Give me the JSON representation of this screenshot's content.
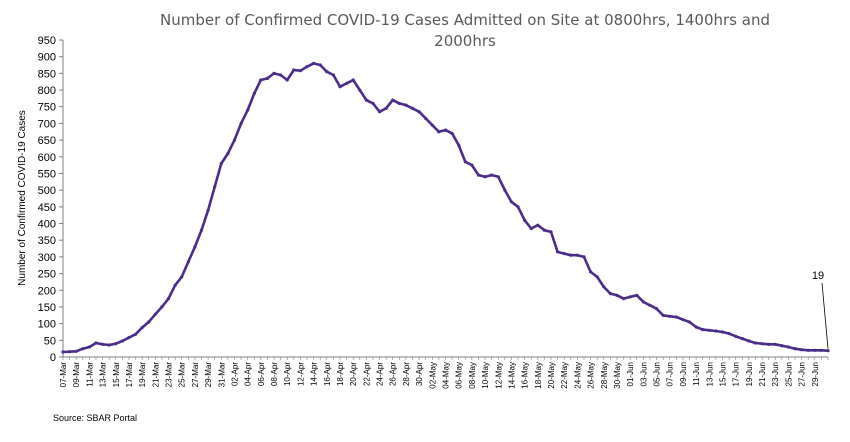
{
  "chart_data": {
    "type": "line",
    "title_line1": "Number of Confirmed COVID-19 Cases Admitted on Site at 0800hrs, 1400hrs and",
    "title_line2": "2000hrs",
    "xlabel": "",
    "ylabel": "Number of Confirmed COVID-19 Cases",
    "ylim": [
      0,
      950
    ],
    "y_ticks": [
      "0",
      "50",
      "100",
      "150",
      "200",
      "250",
      "300",
      "350",
      "400",
      "450",
      "500",
      "550",
      "600",
      "650",
      "700",
      "750",
      "800",
      "850",
      "900",
      "950"
    ],
    "x_range": [
      "2020-03-07",
      "2020-07-01"
    ],
    "x_ticks": [
      "07-Mar",
      "09-Mar",
      "11-Mar",
      "13-Mar",
      "15-Mar",
      "17-Mar",
      "19-Mar",
      "21-Mar",
      "23-Mar",
      "25-Mar",
      "27-Mar",
      "29-Mar",
      "31-Mar",
      "02-Apr",
      "04-Apr",
      "06-Apr",
      "08-Apr",
      "10-Apr",
      "12-Apr",
      "14-Apr",
      "16-Apr",
      "18-Apr",
      "20-Apr",
      "22-Apr",
      "24-Apr",
      "26-Apr",
      "28-Apr",
      "30-Apr",
      "02-May",
      "04-May",
      "06-May",
      "08-May",
      "10-May",
      "12-May",
      "14-May",
      "16-May",
      "18-May",
      "20-May",
      "22-May",
      "24-May",
      "26-May",
      "28-May",
      "30-May",
      "01-Jun",
      "03-Jun",
      "05-Jun",
      "07-Jun",
      "09-Jun",
      "11-Jun",
      "13-Jun",
      "15-Jun",
      "17-Jun",
      "19-Jun",
      "21-Jun",
      "23-Jun",
      "25-Jun",
      "27-Jun",
      "29-Jun"
    ],
    "grid": false,
    "legend": "none",
    "line_color": "#4B2C8A",
    "annotation": {
      "text": "19",
      "date": "2020-07-01",
      "value": 19
    },
    "series": [
      {
        "name": "",
        "points": [
          [
            "2020-03-07",
            15
          ],
          [
            "2020-03-08",
            16
          ],
          [
            "2020-03-09",
            17
          ],
          [
            "2020-03-10",
            25
          ],
          [
            "2020-03-11",
            30
          ],
          [
            "2020-03-12",
            42
          ],
          [
            "2020-03-13",
            38
          ],
          [
            "2020-03-14",
            36
          ],
          [
            "2020-03-15",
            40
          ],
          [
            "2020-03-16",
            48
          ],
          [
            "2020-03-17",
            58
          ],
          [
            "2020-03-18",
            68
          ],
          [
            "2020-03-19",
            88
          ],
          [
            "2020-03-20",
            105
          ],
          [
            "2020-03-21",
            128
          ],
          [
            "2020-03-22",
            150
          ],
          [
            "2020-03-23",
            175
          ],
          [
            "2020-03-24",
            215
          ],
          [
            "2020-03-25",
            240
          ],
          [
            "2020-03-26",
            285
          ],
          [
            "2020-03-27",
            330
          ],
          [
            "2020-03-28",
            380
          ],
          [
            "2020-03-29",
            440
          ],
          [
            "2020-03-30",
            510
          ],
          [
            "2020-03-31",
            580
          ],
          [
            "2020-04-01",
            610
          ],
          [
            "2020-04-02",
            650
          ],
          [
            "2020-04-03",
            700
          ],
          [
            "2020-04-04",
            740
          ],
          [
            "2020-04-05",
            790
          ],
          [
            "2020-04-06",
            830
          ],
          [
            "2020-04-07",
            835
          ],
          [
            "2020-04-08",
            850
          ],
          [
            "2020-04-09",
            845
          ],
          [
            "2020-04-10",
            830
          ],
          [
            "2020-04-11",
            860
          ],
          [
            "2020-04-12",
            858
          ],
          [
            "2020-04-13",
            870
          ],
          [
            "2020-04-14",
            880
          ],
          [
            "2020-04-15",
            875
          ],
          [
            "2020-04-16",
            855
          ],
          [
            "2020-04-17",
            845
          ],
          [
            "2020-04-18",
            810
          ],
          [
            "2020-04-19",
            820
          ],
          [
            "2020-04-20",
            830
          ],
          [
            "2020-04-21",
            800
          ],
          [
            "2020-04-22",
            770
          ],
          [
            "2020-04-23",
            760
          ],
          [
            "2020-04-24",
            735
          ],
          [
            "2020-04-25",
            745
          ],
          [
            "2020-04-26",
            770
          ],
          [
            "2020-04-27",
            760
          ],
          [
            "2020-04-28",
            755
          ],
          [
            "2020-04-29",
            745
          ],
          [
            "2020-04-30",
            735
          ],
          [
            "2020-05-01",
            715
          ],
          [
            "2020-05-02",
            695
          ],
          [
            "2020-05-03",
            675
          ],
          [
            "2020-05-04",
            680
          ],
          [
            "2020-05-05",
            670
          ],
          [
            "2020-05-06",
            635
          ],
          [
            "2020-05-07",
            585
          ],
          [
            "2020-05-08",
            575
          ],
          [
            "2020-05-09",
            545
          ],
          [
            "2020-05-10",
            540
          ],
          [
            "2020-05-11",
            545
          ],
          [
            "2020-05-12",
            540
          ],
          [
            "2020-05-13",
            500
          ],
          [
            "2020-05-14",
            465
          ],
          [
            "2020-05-15",
            450
          ],
          [
            "2020-05-16",
            410
          ],
          [
            "2020-05-17",
            385
          ],
          [
            "2020-05-18",
            395
          ],
          [
            "2020-05-19",
            380
          ],
          [
            "2020-05-20",
            375
          ],
          [
            "2020-05-21",
            315
          ],
          [
            "2020-05-22",
            310
          ],
          [
            "2020-05-23",
            305
          ],
          [
            "2020-05-24",
            305
          ],
          [
            "2020-05-25",
            300
          ],
          [
            "2020-05-26",
            255
          ],
          [
            "2020-05-27",
            240
          ],
          [
            "2020-05-28",
            210
          ],
          [
            "2020-05-29",
            190
          ],
          [
            "2020-05-30",
            185
          ],
          [
            "2020-05-31",
            175
          ],
          [
            "2020-06-01",
            180
          ],
          [
            "2020-06-02",
            185
          ],
          [
            "2020-06-03",
            165
          ],
          [
            "2020-06-04",
            155
          ],
          [
            "2020-06-05",
            145
          ],
          [
            "2020-06-06",
            125
          ],
          [
            "2020-06-07",
            122
          ],
          [
            "2020-06-08",
            120
          ],
          [
            "2020-06-09",
            112
          ],
          [
            "2020-06-10",
            105
          ],
          [
            "2020-06-11",
            90
          ],
          [
            "2020-06-12",
            82
          ],
          [
            "2020-06-13",
            80
          ],
          [
            "2020-06-14",
            78
          ],
          [
            "2020-06-15",
            75
          ],
          [
            "2020-06-16",
            70
          ],
          [
            "2020-06-17",
            62
          ],
          [
            "2020-06-18",
            55
          ],
          [
            "2020-06-19",
            48
          ],
          [
            "2020-06-20",
            42
          ],
          [
            "2020-06-21",
            40
          ],
          [
            "2020-06-22",
            38
          ],
          [
            "2020-06-23",
            38
          ],
          [
            "2020-06-24",
            34
          ],
          [
            "2020-06-25",
            30
          ],
          [
            "2020-06-26",
            25
          ],
          [
            "2020-06-27",
            22
          ],
          [
            "2020-06-28",
            20
          ],
          [
            "2020-06-29",
            20
          ],
          [
            "2020-06-30",
            20
          ],
          [
            "2020-07-01",
            19
          ]
        ]
      }
    ]
  },
  "source": "Source: SBAR Portal"
}
